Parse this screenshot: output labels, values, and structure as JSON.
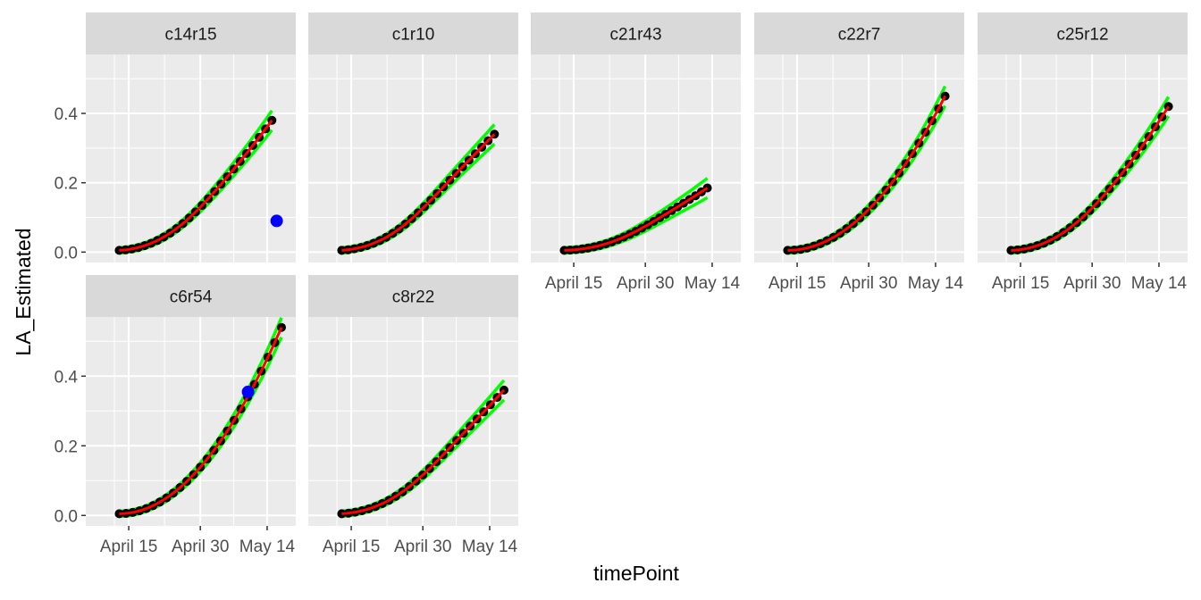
{
  "chart_data": {
    "type": "line",
    "layout": "facet-wrap",
    "xlabel": "timePoint",
    "ylabel": "LA_Estimated",
    "x_ticks": [
      "April 15",
      "April 30",
      "May 14"
    ],
    "x_tick_days": [
      0,
      15,
      29
    ],
    "xlim_days": [
      -9,
      35
    ],
    "y_ticks": [
      "0.0",
      "0.2",
      "0.4"
    ],
    "y_tick_values": [
      0.0,
      0.2,
      0.4
    ],
    "ylim": [
      -0.03,
      0.57
    ],
    "grid": true,
    "colors": {
      "panel_bg": "#ebebeb",
      "strip_bg": "#d9d9d9",
      "grid": "#ffffff",
      "observed": "#000000",
      "fit": "#ff0000",
      "band": "#00ff00",
      "outlier": "#0000ff"
    },
    "facets": [
      {
        "label": "c14r15",
        "x_day": [
          -2,
          30
        ],
        "ymax": 0.38,
        "shape": 0.75,
        "outliers": [
          [
            31,
            0.09
          ]
        ]
      },
      {
        "label": "c1r10",
        "x_day": [
          -2,
          30
        ],
        "ymax": 0.34,
        "shape": 0.6,
        "outliers": []
      },
      {
        "label": "c21r43",
        "x_day": [
          -2,
          28
        ],
        "ymax": 0.185,
        "shape": 0.7,
        "outliers": []
      },
      {
        "label": "c22r7",
        "x_day": [
          -2,
          31
        ],
        "ymax": 0.45,
        "shape": 1.0,
        "outliers": []
      },
      {
        "label": "c25r12",
        "x_day": [
          -2,
          31
        ],
        "ymax": 0.42,
        "shape": 0.85,
        "outliers": []
      },
      {
        "label": "c6r54",
        "x_day": [
          -2,
          32
        ],
        "ymax": 0.54,
        "shape": 1.0,
        "outliers": [
          [
            25,
            0.355
          ]
        ]
      },
      {
        "label": "c8r22",
        "x_day": [
          -2,
          32
        ],
        "ymax": 0.36,
        "shape": 0.65,
        "outliers": []
      }
    ]
  }
}
